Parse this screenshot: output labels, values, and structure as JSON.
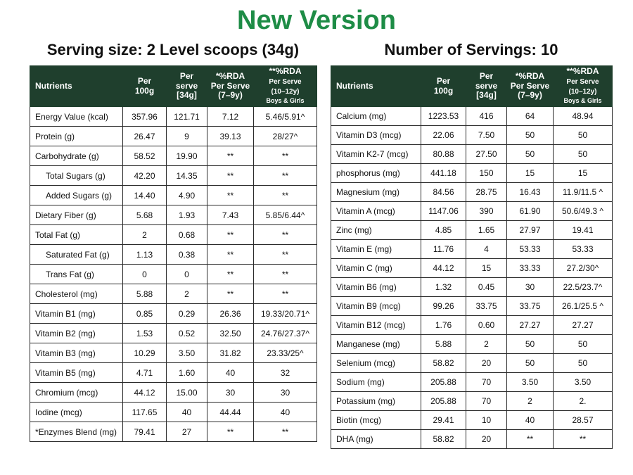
{
  "title": "New Version",
  "serving_size": "Serving size: 2 Level scoops (34g)",
  "servings_count": "Number of Servings: 10",
  "headers": {
    "nutrients": "Nutrients",
    "per100_l1": "Per",
    "per100_l2": "100g",
    "serve_l1": "Per",
    "serve_l2": "serve",
    "serve_l3": "[34g]",
    "rda79_l1": "*%RDA",
    "rda79_l2": "Per Serve",
    "rda79_l3": "(7–9y)",
    "rda1012_l1": "**%RDA",
    "rda1012_l2": "Per Serve",
    "rda1012_l3": "(10–12y)",
    "rda1012_l4": "Boys & Girls"
  },
  "left_rows": [
    {
      "name": "Energy Value (kcal)",
      "per100": "357.96",
      "serve": "121.71",
      "rda79": "7.12",
      "rda1012": "5.46/5.91^"
    },
    {
      "name": "Protein (g)",
      "per100": "26.47",
      "serve": "9",
      "rda79": "39.13",
      "rda1012": "28/27^"
    },
    {
      "name": "Carbohydrate (g)",
      "per100": "58.52",
      "serve": "19.90",
      "rda79": "**",
      "rda1012": "**"
    },
    {
      "name": "Total Sugars (g)",
      "per100": "42.20",
      "serve": "14.35",
      "rda79": "**",
      "rda1012": "**"
    },
    {
      "name": "Added Sugars (g)",
      "per100": "14.40",
      "serve": "4.90",
      "rda79": "**",
      "rda1012": "**"
    },
    {
      "name": "Dietary Fiber (g)",
      "per100": "5.68",
      "serve": "1.93",
      "rda79": "7.43",
      "rda1012": "5.85/6.44^"
    },
    {
      "name": "Total Fat (g)",
      "per100": "2",
      "serve": "0.68",
      "rda79": "**",
      "rda1012": "**"
    },
    {
      "name": "Saturated Fat (g)",
      "per100": "1.13",
      "serve": "0.38",
      "rda79": "**",
      "rda1012": "**"
    },
    {
      "name": "Trans Fat (g)",
      "per100": "0",
      "serve": "0",
      "rda79": "**",
      "rda1012": "**"
    },
    {
      "name": "Cholesterol (mg)",
      "per100": "5.88",
      "serve": "2",
      "rda79": "**",
      "rda1012": "**"
    },
    {
      "name": "Vitamin B1 (mg)",
      "per100": "0.85",
      "serve": "0.29",
      "rda79": "26.36",
      "rda1012": "19.33/20.71^"
    },
    {
      "name": "Vitamin B2 (mg)",
      "per100": "1.53",
      "serve": "0.52",
      "rda79": "32.50",
      "rda1012": "24.76/27.37^"
    },
    {
      "name": "Vitamin B3 (mg)",
      "per100": "10.29",
      "serve": "3.50",
      "rda79": "31.82",
      "rda1012": "23.33/25^"
    },
    {
      "name": "Vitamin B5 (mg)",
      "per100": "4.71",
      "serve": "1.60",
      "rda79": "40",
      "rda1012": "32"
    },
    {
      "name": "Chromium (mcg)",
      "per100": "44.12",
      "serve": "15.00",
      "rda79": "30",
      "rda1012": "30"
    },
    {
      "name": "Iodine (mcg)",
      "per100": "117.65",
      "serve": "40",
      "rda79": "44.44",
      "rda1012": "40"
    },
    {
      "name": "*Enzymes Blend (mg)",
      "per100": "79.41",
      "serve": "27",
      "rda79": "**",
      "rda1012": "**"
    }
  ],
  "right_rows": [
    {
      "name": "Calcium (mg)",
      "per100": "1223.53",
      "serve": "416",
      "rda79": "64",
      "rda1012": "48.94"
    },
    {
      "name": "Vitamin D3 (mcg)",
      "per100": "22.06",
      "serve": "7.50",
      "rda79": "50",
      "rda1012": "50"
    },
    {
      "name": "Vitamin K2-7 (mcg)",
      "per100": "80.88",
      "serve": "27.50",
      "rda79": "50",
      "rda1012": "50"
    },
    {
      "name": "phosphorus (mg)",
      "per100": "441.18",
      "serve": "150",
      "rda79": "15",
      "rda1012": "15"
    },
    {
      "name": "Magnesium (mg)",
      "per100": "84.56",
      "serve": "28.75",
      "rda79": "16.43",
      "rda1012": "11.9/11.5 ^"
    },
    {
      "name": "Vitamin A (mcg)",
      "per100": "1147.06",
      "serve": "390",
      "rda79": "61.90",
      "rda1012": "50.6/49.3 ^"
    },
    {
      "name": "Zinc (mg)",
      "per100": "4.85",
      "serve": "1.65",
      "rda79": "27.97",
      "rda1012": "19.41"
    },
    {
      "name": "Vitamin E (mg)",
      "per100": "11.76",
      "serve": "4",
      "rda79": "53.33",
      "rda1012": "53.33"
    },
    {
      "name": "Vitamin C (mg)",
      "per100": "44.12",
      "serve": "15",
      "rda79": "33.33",
      "rda1012": "27.2/30^"
    },
    {
      "name": "Vitamin B6 (mg)",
      "per100": "1.32",
      "serve": "0.45",
      "rda79": "30",
      "rda1012": "22.5/23.7^"
    },
    {
      "name": "Vitamin B9 (mcg)",
      "per100": "99.26",
      "serve": "33.75",
      "rda79": "33.75",
      "rda1012": "26.1/25.5 ^"
    },
    {
      "name": "Vitamin B12 (mcg)",
      "per100": "1.76",
      "serve": "0.60",
      "rda79": "27.27",
      "rda1012": "27.27"
    },
    {
      "name": "Manganese (mg)",
      "per100": "5.88",
      "serve": "2",
      "rda79": "50",
      "rda1012": "50"
    },
    {
      "name": "Selenium (mcg)",
      "per100": "58.82",
      "serve": "20",
      "rda79": "50",
      "rda1012": "50"
    },
    {
      "name": "Sodium (mg)",
      "per100": "205.88",
      "serve": "70",
      "rda79": "3.50",
      "rda1012": "3.50"
    },
    {
      "name": "Potassium (mg)",
      "per100": "205.88",
      "serve": "70",
      "rda79": "2",
      "rda1012": "2."
    },
    {
      "name": "Biotin (mcg)",
      "per100": "29.41",
      "serve": "10",
      "rda79": "40",
      "rda1012": "28.57"
    },
    {
      "name": "DHA (mg)",
      "per100": "58.82",
      "serve": "20",
      "rda79": "**",
      "rda1012": "**"
    }
  ]
}
